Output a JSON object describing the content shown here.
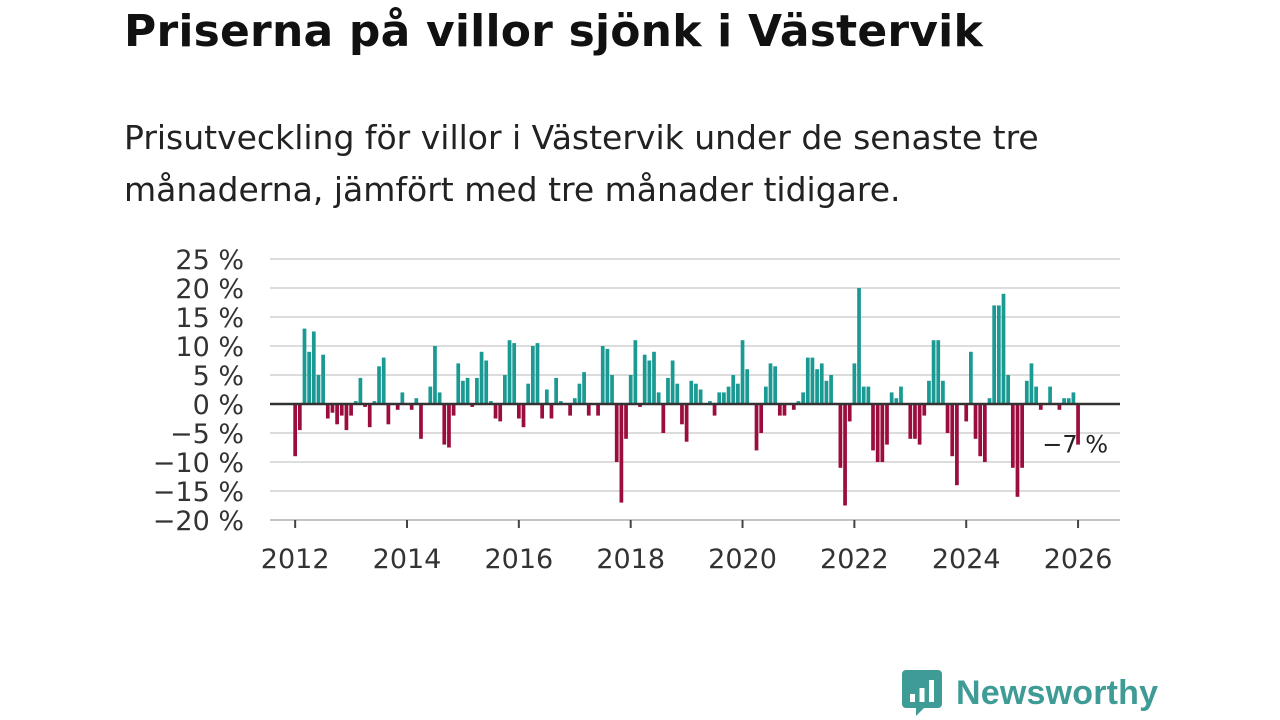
{
  "title": "Priserna på villor sjönk i Västervik",
  "subtitle": "Prisutveckling för villor i Västervik under de senaste tre månaderna, jämfört med tre månader tidigare.",
  "brand": {
    "name": "Newsworthy",
    "color": "#3e9b95"
  },
  "colors": {
    "positive": "#1a9a93",
    "negative": "#9b0d3f",
    "grid": "#dcdcdc",
    "zero_line": "#333333"
  },
  "chart_data": {
    "type": "bar",
    "title": "",
    "xlabel": "",
    "ylabel": "",
    "ylim": [
      -20,
      25
    ],
    "xlim": [
      2011.55,
      2026.75
    ],
    "y_ticks": [
      25,
      20,
      15,
      10,
      5,
      0,
      -5,
      -10,
      -15,
      -20
    ],
    "y_tick_labels": [
      "25 %",
      "20 %",
      "15 %",
      "10 %",
      "5 %",
      "0 %",
      "−5 %",
      "−10 %",
      "−15 %",
      "−20 %"
    ],
    "x_ticks": [
      2012,
      2014,
      2016,
      2018,
      2020,
      2022,
      2024,
      2026
    ],
    "x_tick_labels": [
      "2012",
      "2014",
      "2016",
      "2018",
      "2020",
      "2022",
      "2024",
      "2026"
    ],
    "start_year": 2012,
    "start_month": 1,
    "frequency": "monthly",
    "values": [
      -9,
      -4.5,
      13,
      9,
      12.5,
      5,
      8.5,
      -2.5,
      -1.5,
      -3.5,
      -2,
      -4.5,
      -2,
      0.5,
      4.5,
      -0.5,
      -4,
      0.5,
      6.5,
      8,
      -3.5,
      0,
      -1,
      2,
      0,
      -1,
      1,
      -6,
      0,
      3,
      10,
      2,
      -7,
      -7.5,
      -2,
      7,
      4,
      4.5,
      -0.5,
      4.5,
      9,
      7.5,
      0.5,
      -2.5,
      -3,
      5,
      11,
      10.5,
      -2.5,
      -4,
      3.5,
      10,
      10.5,
      -2.5,
      2.5,
      -2.5,
      4.5,
      0.5,
      0,
      -2,
      1,
      3.5,
      5.5,
      -2,
      0,
      -2,
      10,
      9.5,
      5,
      -10,
      -17,
      -6,
      5,
      11,
      -0.5,
      8.5,
      7.5,
      9,
      2,
      -5,
      4.5,
      7.5,
      3.5,
      -3.5,
      -6.5,
      4,
      3.5,
      2.5,
      0,
      0.5,
      -2,
      2,
      2,
      3,
      5,
      3.5,
      11,
      6,
      0,
      -8,
      -5,
      3,
      7,
      6.5,
      -2,
      -2,
      0,
      -1,
      0.5,
      2,
      8,
      8,
      6,
      7,
      4,
      5,
      0,
      -11,
      -17.5,
      -3,
      7,
      20,
      3,
      3,
      -8,
      -10,
      -10,
      -7,
      2,
      1,
      3,
      0,
      -6,
      -6,
      -7,
      -2,
      4,
      11,
      11,
      4,
      -5,
      -9,
      -14,
      0,
      -3,
      9,
      -6,
      -9,
      -10,
      1,
      17,
      17,
      19,
      5,
      -11,
      -16,
      -11,
      4,
      7,
      3,
      -1,
      0,
      3,
      0,
      -1,
      1,
      1,
      2,
      -7
    ],
    "annotation": {
      "label": "−7 %",
      "value": -7
    }
  }
}
